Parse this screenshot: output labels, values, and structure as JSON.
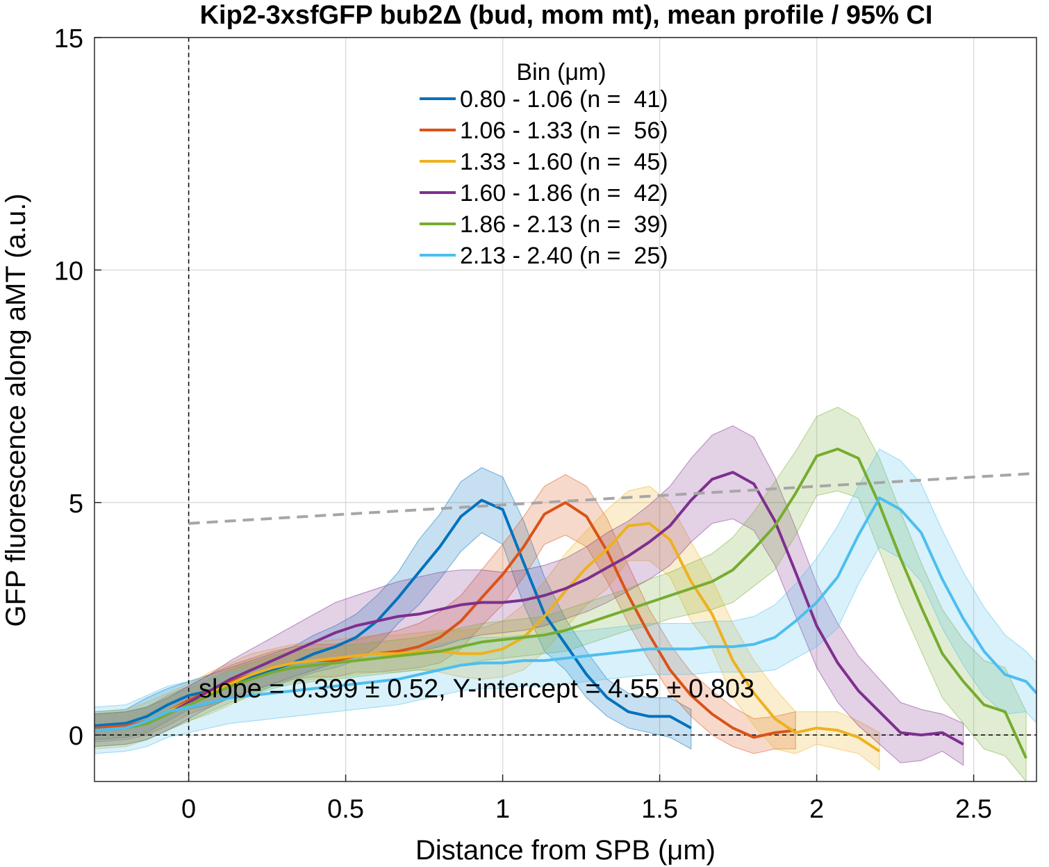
{
  "chart_data": {
    "type": "line",
    "title": "Kip2-3xsfGFP bub2Δ (bud, mom mt), mean profile / 95% CI",
    "xlabel": "Distance from SPB (μm)",
    "ylabel": "GFP fluorescence along aMT (a.u.)",
    "xlim": [
      -0.3,
      2.7
    ],
    "ylim": [
      -1,
      15
    ],
    "xticks": [
      0,
      0.5,
      1,
      1.5,
      2,
      2.5
    ],
    "xtick_labels": [
      "0",
      "0.5",
      "1",
      "1.5",
      "2",
      "2.5"
    ],
    "yticks": [
      0,
      5,
      10,
      15
    ],
    "ytick_labels": [
      "0",
      "5",
      "10",
      "15"
    ],
    "grid": true,
    "legend_title": "Bin (μm)",
    "legend_position": "top-center",
    "annotation": "slope = 0.399 ± 0.52, Y-intercept = 4.55 ± 0.803",
    "fit_line": {
      "slope": 0.399,
      "intercept": 4.55,
      "color": "#a6a6a6",
      "style": "dashed"
    },
    "reference_lines": [
      {
        "axis": "x",
        "value": 0,
        "style": "dashed"
      },
      {
        "axis": "y",
        "value": 0,
        "style": "dashed"
      }
    ],
    "series": [
      {
        "name": "0.80 - 1.06 (n =  41)",
        "color": "#0072bd",
        "x": [
          -0.3,
          -0.2,
          -0.133,
          -0.067,
          0,
          0.067,
          0.133,
          0.2,
          0.267,
          0.333,
          0.4,
          0.467,
          0.533,
          0.6,
          0.667,
          0.733,
          0.8,
          0.867,
          0.933,
          1.0,
          1.067,
          1.133,
          1.2,
          1.267,
          1.333,
          1.4,
          1.467,
          1.533,
          1.6
        ],
        "y": [
          0.2,
          0.25,
          0.4,
          0.65,
          0.85,
          0.95,
          1.1,
          1.25,
          1.4,
          1.55,
          1.75,
          1.9,
          2.1,
          2.45,
          2.95,
          3.5,
          4.05,
          4.7,
          5.05,
          4.85,
          3.7,
          2.6,
          1.95,
          1.3,
          0.8,
          0.5,
          0.4,
          0.4,
          0.15
        ],
        "ci_upper": [
          0.5,
          0.55,
          0.8,
          1.0,
          1.15,
          1.3,
          1.45,
          1.6,
          1.75,
          1.9,
          2.15,
          2.35,
          2.6,
          3.0,
          3.5,
          4.2,
          4.75,
          5.45,
          5.75,
          5.55,
          4.6,
          3.4,
          2.5,
          1.8,
          1.2,
          0.9,
          0.8,
          0.8,
          0.55
        ],
        "ci_lower": [
          -0.1,
          -0.05,
          0.05,
          0.3,
          0.55,
          0.65,
          0.8,
          0.9,
          1.05,
          1.2,
          1.35,
          1.45,
          1.6,
          1.9,
          2.4,
          2.8,
          3.35,
          3.95,
          4.35,
          4.1,
          2.8,
          1.8,
          1.4,
          0.8,
          0.4,
          0.15,
          0.05,
          -0.05,
          -0.3
        ]
      },
      {
        "name": "1.06 - 1.33 (n =  56)",
        "color": "#d95319",
        "x": [
          -0.3,
          -0.2,
          -0.133,
          -0.067,
          0,
          0.067,
          0.133,
          0.2,
          0.267,
          0.333,
          0.4,
          0.467,
          0.533,
          0.6,
          0.667,
          0.733,
          0.8,
          0.867,
          0.933,
          1.0,
          1.067,
          1.133,
          1.2,
          1.267,
          1.333,
          1.4,
          1.467,
          1.533,
          1.6,
          1.667,
          1.733,
          1.8,
          1.867,
          1.933
        ],
        "y": [
          0.15,
          0.2,
          0.3,
          0.5,
          0.75,
          0.95,
          1.15,
          1.3,
          1.45,
          1.55,
          1.6,
          1.6,
          1.7,
          1.75,
          1.8,
          1.9,
          2.1,
          2.45,
          2.95,
          3.45,
          4.05,
          4.75,
          5.0,
          4.7,
          3.95,
          3.0,
          2.15,
          1.4,
          0.85,
          0.45,
          0.15,
          -0.05,
          0.05,
          0.1
        ],
        "ci_upper": [
          0.45,
          0.5,
          0.6,
          0.85,
          1.05,
          1.3,
          1.5,
          1.65,
          1.8,
          1.9,
          1.95,
          1.95,
          2.05,
          2.15,
          2.25,
          2.4,
          2.65,
          3.0,
          3.55,
          4.1,
          4.7,
          5.35,
          5.6,
          5.35,
          4.65,
          3.65,
          2.7,
          1.95,
          1.35,
          0.95,
          0.6,
          0.35,
          0.4,
          0.5
        ],
        "ci_lower": [
          -0.15,
          -0.1,
          0.0,
          0.2,
          0.45,
          0.6,
          0.8,
          0.95,
          1.1,
          1.2,
          1.25,
          1.25,
          1.35,
          1.35,
          1.4,
          1.45,
          1.55,
          1.85,
          2.35,
          2.8,
          3.4,
          4.1,
          4.3,
          4.05,
          3.3,
          2.4,
          1.6,
          0.9,
          0.4,
          0.0,
          -0.25,
          -0.4,
          -0.3,
          -0.3
        ]
      },
      {
        "name": "1.33 - 1.60 (n =  45)",
        "color": "#edb120",
        "x": [
          -0.3,
          -0.2,
          -0.133,
          -0.067,
          0,
          0.067,
          0.133,
          0.2,
          0.267,
          0.333,
          0.4,
          0.467,
          0.533,
          0.6,
          0.667,
          0.733,
          0.8,
          0.867,
          0.933,
          1.0,
          1.067,
          1.133,
          1.2,
          1.267,
          1.333,
          1.4,
          1.467,
          1.533,
          1.6,
          1.667,
          1.733,
          1.8,
          1.867,
          1.933,
          2.0,
          2.067,
          2.133,
          2.2
        ],
        "y": [
          0.1,
          0.15,
          0.3,
          0.5,
          0.7,
          0.9,
          1.1,
          1.3,
          1.45,
          1.55,
          1.6,
          1.65,
          1.7,
          1.75,
          1.75,
          1.8,
          1.8,
          1.75,
          1.75,
          1.85,
          2.1,
          2.55,
          3.1,
          3.6,
          4.0,
          4.5,
          4.55,
          4.2,
          3.3,
          2.6,
          1.6,
          0.9,
          0.35,
          0.05,
          0.15,
          0.1,
          -0.05,
          -0.35
        ],
        "ci_upper": [
          0.5,
          0.55,
          0.7,
          0.9,
          1.1,
          1.35,
          1.55,
          1.75,
          1.85,
          1.95,
          2.0,
          2.05,
          2.1,
          2.15,
          2.15,
          2.2,
          2.25,
          2.25,
          2.3,
          2.45,
          2.8,
          3.3,
          3.9,
          4.4,
          4.85,
          5.25,
          5.35,
          5.0,
          4.15,
          3.35,
          2.4,
          1.6,
          1.0,
          0.5,
          0.5,
          0.5,
          0.3,
          0.05
        ],
        "ci_lower": [
          -0.3,
          -0.25,
          -0.1,
          0.1,
          0.3,
          0.45,
          0.65,
          0.85,
          1.05,
          1.15,
          1.2,
          1.25,
          1.3,
          1.35,
          1.35,
          1.4,
          1.35,
          1.25,
          1.2,
          1.25,
          1.4,
          1.8,
          2.3,
          2.8,
          3.15,
          3.75,
          3.75,
          3.4,
          2.45,
          1.85,
          0.8,
          0.2,
          -0.3,
          -0.4,
          -0.2,
          -0.3,
          -0.4,
          -0.75
        ]
      },
      {
        "name": "1.60 - 1.86 (n =  42)",
        "color": "#7e2f8e",
        "x": [
          -0.3,
          -0.2,
          -0.133,
          -0.067,
          0,
          0.067,
          0.133,
          0.2,
          0.267,
          0.333,
          0.4,
          0.467,
          0.533,
          0.6,
          0.667,
          0.733,
          0.8,
          0.867,
          0.933,
          1.0,
          1.067,
          1.133,
          1.2,
          1.267,
          1.333,
          1.4,
          1.467,
          1.533,
          1.6,
          1.667,
          1.733,
          1.8,
          1.867,
          1.933,
          2.0,
          2.067,
          2.133,
          2.2,
          2.267,
          2.333,
          2.4,
          2.467
        ],
        "y": [
          0.1,
          0.15,
          0.25,
          0.45,
          0.7,
          0.95,
          1.2,
          1.4,
          1.6,
          1.8,
          2.0,
          2.2,
          2.35,
          2.45,
          2.55,
          2.6,
          2.7,
          2.8,
          2.85,
          2.85,
          2.9,
          3.0,
          3.15,
          3.35,
          3.6,
          3.85,
          4.15,
          4.5,
          5.05,
          5.5,
          5.65,
          5.4,
          4.6,
          3.5,
          2.35,
          1.55,
          0.95,
          0.5,
          0.05,
          0.0,
          0.05,
          -0.2
        ],
        "ci_upper": [
          0.45,
          0.5,
          0.6,
          0.8,
          1.05,
          1.3,
          1.6,
          1.85,
          2.1,
          2.35,
          2.6,
          2.85,
          3.0,
          3.15,
          3.3,
          3.4,
          3.5,
          3.55,
          3.55,
          3.5,
          3.55,
          3.65,
          3.8,
          4.05,
          4.35,
          4.6,
          4.95,
          5.35,
          5.95,
          6.45,
          6.65,
          6.4,
          5.55,
          4.45,
          3.25,
          2.4,
          1.7,
          1.2,
          0.7,
          0.55,
          0.45,
          0.25
        ],
        "ci_lower": [
          -0.25,
          -0.2,
          -0.1,
          0.1,
          0.35,
          0.6,
          0.8,
          0.95,
          1.1,
          1.25,
          1.4,
          1.55,
          1.7,
          1.75,
          1.8,
          1.8,
          1.9,
          2.05,
          2.15,
          2.2,
          2.25,
          2.35,
          2.5,
          2.65,
          2.85,
          3.1,
          3.35,
          3.65,
          4.15,
          4.55,
          4.65,
          4.4,
          3.65,
          2.55,
          1.45,
          0.7,
          0.2,
          -0.2,
          -0.6,
          -0.55,
          -0.35,
          -0.65
        ]
      },
      {
        "name": "1.86 - 2.13 (n =  39)",
        "color": "#77ac30",
        "x": [
          -0.3,
          -0.2,
          -0.133,
          -0.067,
          0,
          0.067,
          0.133,
          0.2,
          0.267,
          0.333,
          0.4,
          0.467,
          0.533,
          0.6,
          0.667,
          0.733,
          0.8,
          0.867,
          0.933,
          1.0,
          1.067,
          1.133,
          1.2,
          1.267,
          1.333,
          1.4,
          1.467,
          1.533,
          1.6,
          1.667,
          1.733,
          1.8,
          1.867,
          1.933,
          2.0,
          2.067,
          2.133,
          2.2,
          2.267,
          2.333,
          2.4,
          2.467,
          2.533,
          2.6,
          2.667
        ],
        "y": [
          0.1,
          0.15,
          0.25,
          0.45,
          0.65,
          0.85,
          1.05,
          1.2,
          1.35,
          1.45,
          1.5,
          1.55,
          1.6,
          1.65,
          1.7,
          1.75,
          1.8,
          1.9,
          2.0,
          2.05,
          2.1,
          2.15,
          2.25,
          2.4,
          2.55,
          2.7,
          2.85,
          3.0,
          3.15,
          3.3,
          3.55,
          4.0,
          4.5,
          5.2,
          6.0,
          6.15,
          5.95,
          4.95,
          3.8,
          2.75,
          1.75,
          1.15,
          0.65,
          0.5,
          -0.5
        ],
        "ci_upper": [
          0.45,
          0.5,
          0.6,
          0.8,
          1.0,
          1.2,
          1.4,
          1.55,
          1.7,
          1.8,
          1.85,
          1.9,
          1.95,
          2.0,
          2.05,
          2.1,
          2.2,
          2.3,
          2.4,
          2.45,
          2.5,
          2.55,
          2.7,
          2.85,
          3.0,
          3.15,
          3.35,
          3.5,
          3.7,
          3.9,
          4.25,
          4.8,
          5.45,
          6.1,
          6.85,
          7.05,
          6.8,
          5.95,
          4.8,
          3.7,
          2.7,
          2.05,
          1.6,
          1.45,
          0.5
        ],
        "ci_lower": [
          -0.25,
          -0.2,
          -0.1,
          0.1,
          0.3,
          0.5,
          0.7,
          0.85,
          1.0,
          1.1,
          1.15,
          1.2,
          1.25,
          1.3,
          1.35,
          1.4,
          1.4,
          1.5,
          1.6,
          1.65,
          1.7,
          1.75,
          1.8,
          1.95,
          2.1,
          2.25,
          2.35,
          2.5,
          2.6,
          2.7,
          2.85,
          3.2,
          3.55,
          4.3,
          5.15,
          5.25,
          5.1,
          3.95,
          2.8,
          1.8,
          0.8,
          0.25,
          -0.3,
          -0.45,
          -1.0
        ]
      },
      {
        "name": "2.13 - 2.40 (n =  25)",
        "color": "#4dbeee",
        "x": [
          -0.3,
          -0.2,
          -0.133,
          -0.067,
          0,
          0.067,
          0.133,
          0.2,
          0.267,
          0.333,
          0.4,
          0.467,
          0.533,
          0.6,
          0.667,
          0.733,
          0.8,
          0.867,
          0.933,
          1.0,
          1.067,
          1.133,
          1.2,
          1.267,
          1.333,
          1.4,
          1.467,
          1.533,
          1.6,
          1.667,
          1.733,
          1.8,
          1.867,
          1.933,
          2.0,
          2.067,
          2.133,
          2.2,
          2.267,
          2.333,
          2.4,
          2.467,
          2.533,
          2.6,
          2.667,
          2.7
        ],
        "y": [
          0.1,
          0.15,
          0.3,
          0.5,
          0.6,
          0.7,
          0.8,
          0.85,
          0.9,
          0.95,
          1.0,
          1.05,
          1.1,
          1.15,
          1.2,
          1.3,
          1.4,
          1.5,
          1.55,
          1.55,
          1.6,
          1.6,
          1.65,
          1.7,
          1.75,
          1.8,
          1.85,
          1.85,
          1.85,
          1.9,
          1.9,
          1.95,
          2.1,
          2.45,
          2.85,
          3.4,
          4.3,
          5.1,
          4.85,
          4.35,
          3.35,
          2.5,
          1.8,
          1.3,
          1.15,
          0.9
        ],
        "ci_upper": [
          0.6,
          0.65,
          0.85,
          1.05,
          1.15,
          1.25,
          1.35,
          1.4,
          1.45,
          1.5,
          1.55,
          1.6,
          1.65,
          1.7,
          1.75,
          1.85,
          1.95,
          2.05,
          2.1,
          2.1,
          2.15,
          2.15,
          2.2,
          2.25,
          2.3,
          2.35,
          2.4,
          2.4,
          2.4,
          2.45,
          2.45,
          2.55,
          2.8,
          3.25,
          3.8,
          4.5,
          5.35,
          6.15,
          5.9,
          5.4,
          4.4,
          3.5,
          2.75,
          2.15,
          1.8,
          1.55
        ],
        "ci_lower": [
          -0.4,
          -0.35,
          -0.25,
          -0.05,
          0.05,
          0.15,
          0.25,
          0.3,
          0.35,
          0.4,
          0.45,
          0.5,
          0.55,
          0.6,
          0.65,
          0.75,
          0.85,
          0.95,
          1.0,
          1.0,
          1.05,
          1.05,
          1.1,
          1.15,
          1.2,
          1.25,
          1.3,
          1.3,
          1.3,
          1.35,
          1.35,
          1.35,
          1.4,
          1.65,
          1.9,
          2.3,
          3.25,
          4.05,
          3.8,
          3.3,
          2.3,
          1.5,
          0.85,
          0.45,
          0.5,
          0.25
        ]
      }
    ]
  }
}
